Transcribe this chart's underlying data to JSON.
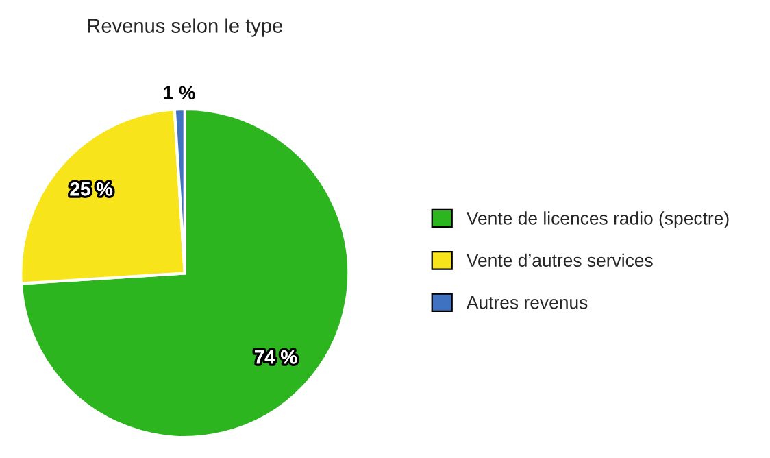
{
  "chart_data": {
    "type": "pie",
    "title": "Revenus selon le type",
    "categories": [
      "Vente de licences radio (spectre)",
      "Vente d’autres services",
      "Autres revenus"
    ],
    "values": [
      74,
      25,
      1
    ],
    "colors": [
      "#2db51f",
      "#f7e41a",
      "#3f72c0"
    ],
    "value_labels": [
      "74 %",
      "25 %",
      "1 %"
    ],
    "legend": "right"
  }
}
